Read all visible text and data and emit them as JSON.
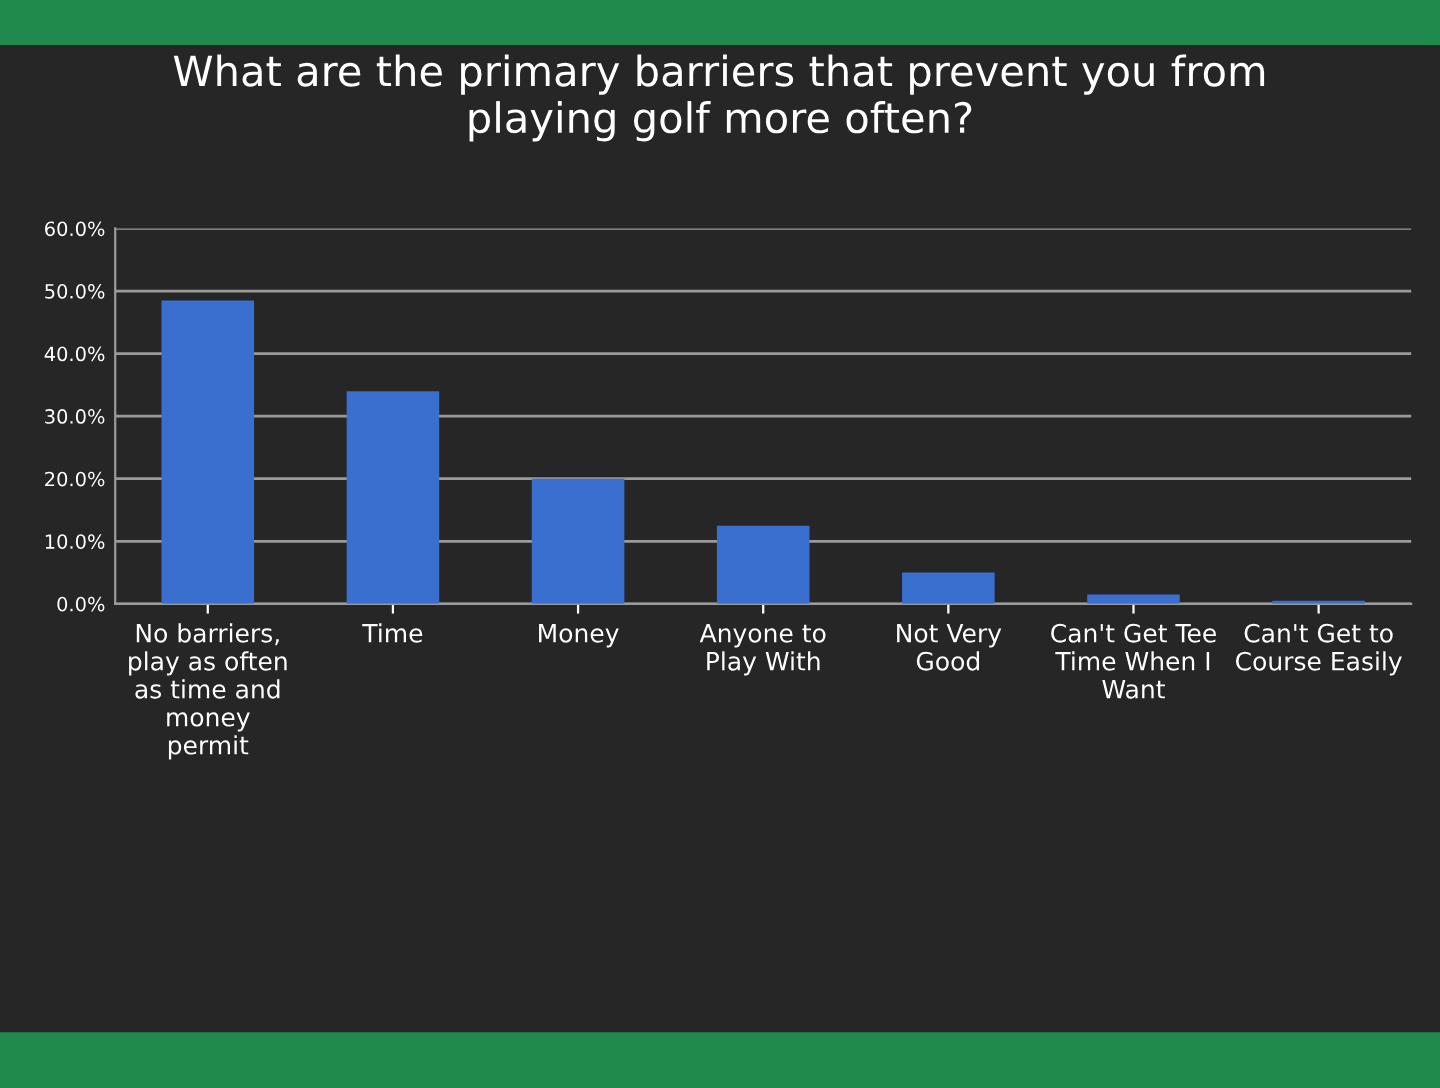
{
  "chart_data": {
    "type": "bar",
    "title": "What are the primary barriers that prevent you from\nplaying golf more often?",
    "categories": [
      "No barriers,\nplay as often\nas time and\nmoney\npermit",
      "Time",
      "Money",
      "Anyone to\nPlay With",
      "Not Very\nGood",
      "Can't Get Tee\nTime When I\nWant",
      "Can't Get to\nCourse Easily"
    ],
    "values": [
      48.5,
      34,
      20,
      12.5,
      5,
      1.5,
      0.5
    ],
    "color": "#3a6fd0",
    "ylim": [
      0,
      60
    ],
    "yticks": [
      {
        "value": 0,
        "label": "0.0%"
      },
      {
        "value": 10,
        "label": "10.0%"
      },
      {
        "value": 20,
        "label": "20.0%"
      },
      {
        "value": 30,
        "label": "30.0%"
      },
      {
        "value": 40,
        "label": "40.0%"
      },
      {
        "value": 50,
        "label": "50.0%"
      },
      {
        "value": 60,
        "label": "60.0%"
      }
    ],
    "grid": "y"
  }
}
